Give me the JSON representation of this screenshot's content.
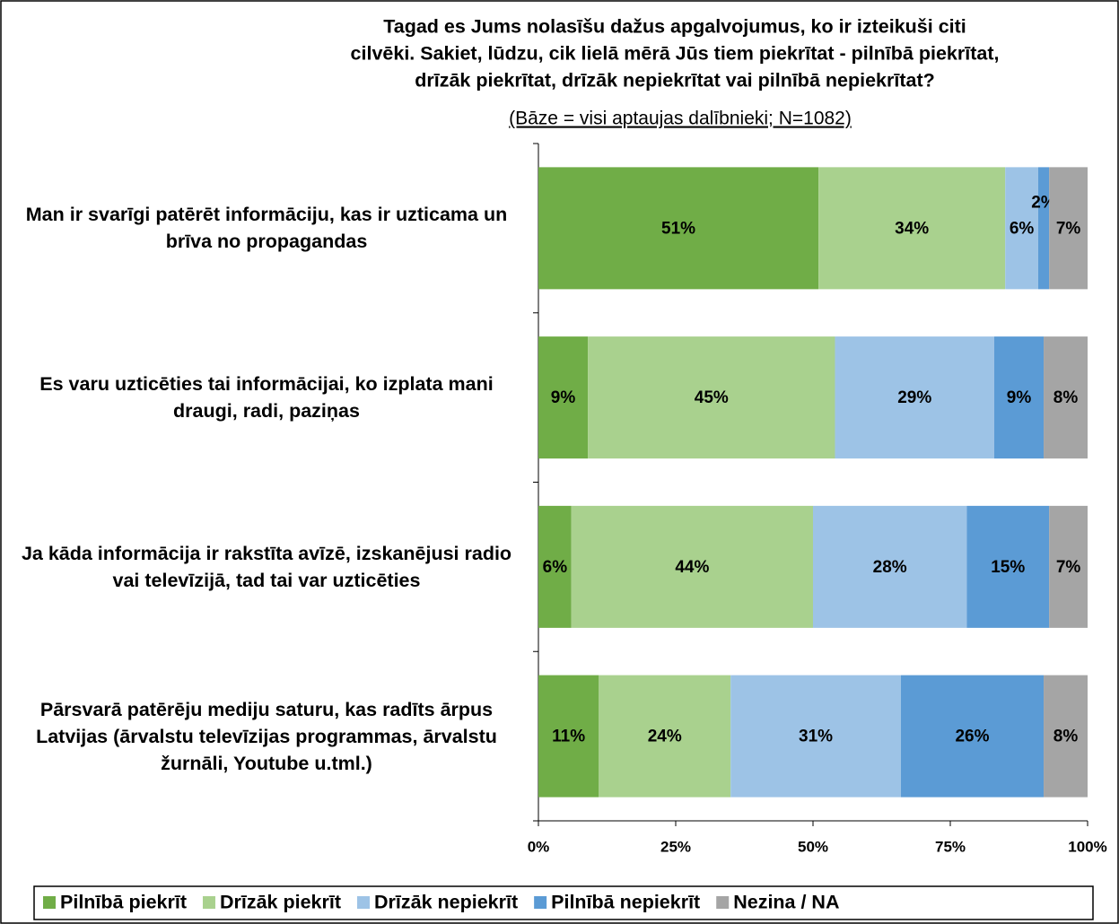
{
  "chart_data": {
    "type": "bar",
    "orientation": "horizontal",
    "stacked": true,
    "title": [
      "Tagad es Jums nolasīšu dažus apgalvojumus, ko ir izteikuši citi",
      "cilvēki. Sakiet, lūdzu, cik lielā mērā Jūs tiem piekrītat - pilnībā piekrītat,",
      "drīzāk piekrītat, drīzāk nepiekrītat vai pilnībā nepiekrītat?"
    ],
    "subtitle": "(Bāze = visi aptaujas dalībnieki;  N=1082)",
    "categories": [
      "Man ir svarīgi patērēt informāciju, kas ir uzticama un brīva no propagandas",
      "Es varu uzticēties tai informācijai, ko izplata mani draugi, radi, paziņas",
      "Ja kāda informācija ir rakstīta avīzē, izskanējusi radio vai televīzijā, tad tai var uzticēties",
      "Pārsvarā patērēju mediju saturu, kas radīts ārpus Latvijas (ārvalstu televīzijas programmas, ārvalstu žurnāli, Youtube u.tml.)"
    ],
    "series": [
      {
        "name": "Pilnībā piekrīt",
        "color": "#70ad47",
        "values": [
          51,
          9,
          6,
          11
        ],
        "value_labels": [
          "51%",
          "9%",
          "6%",
          "11%"
        ]
      },
      {
        "name": "Drīzāk piekrīt",
        "color": "#a9d18e",
        "values": [
          34,
          45,
          44,
          24
        ],
        "value_labels": [
          "34%",
          "45%",
          "44%",
          "24%"
        ]
      },
      {
        "name": "Drīzāk nepiekrīt",
        "color": "#9dc3e6",
        "values": [
          6,
          29,
          28,
          31
        ],
        "value_labels": [
          "6%",
          "29%",
          "28%",
          "31%"
        ]
      },
      {
        "name": "Pilnībā nepiekrīt",
        "color": "#5b9bd5",
        "values": [
          2,
          9,
          15,
          26
        ],
        "value_labels": [
          "2%",
          "9%",
          "15%",
          "26%"
        ]
      },
      {
        "name": "Nezina / NA",
        "color": "#a5a5a5",
        "values": [
          7,
          8,
          7,
          8
        ],
        "value_labels": [
          "7%",
          "8%",
          "7%",
          "8%"
        ]
      }
    ],
    "xlim": [
      0,
      100
    ],
    "xticks": [
      {
        "value": 0,
        "label": "0%"
      },
      {
        "value": 25,
        "label": "25%"
      },
      {
        "value": 50,
        "label": "50%"
      },
      {
        "value": 75,
        "label": "75%"
      },
      {
        "value": 100,
        "label": "100%"
      }
    ],
    "grid": false,
    "legend": "bottom"
  }
}
